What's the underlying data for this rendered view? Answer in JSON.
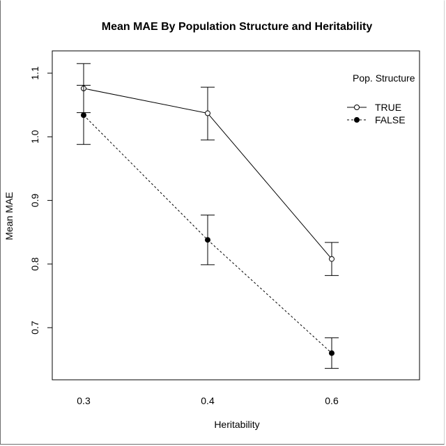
{
  "chart_data": {
    "type": "line",
    "title": "Mean MAE By Population Structure and Heritability",
    "xlabel": "Heritability",
    "ylabel": "Mean MAE",
    "categories": [
      "0.3",
      "0.4",
      "0.6"
    ],
    "yticks": [
      "0.7",
      "0.8",
      "0.9",
      "1.0",
      "1.1"
    ],
    "ylim": [
      0.625,
      1.145
    ],
    "legend_title": "Pop. Structure",
    "legend_position": "top-right",
    "series": [
      {
        "name": "TRUE",
        "marker": "open-circle",
        "line": "solid",
        "values": [
          1.076,
          1.037,
          0.808
        ],
        "error_low": [
          1.038,
          0.995,
          0.782
        ],
        "error_high": [
          1.115,
          1.078,
          0.834
        ]
      },
      {
        "name": "FALSE",
        "marker": "filled-circle",
        "line": "dashed",
        "values": [
          1.034,
          0.838,
          0.66
        ],
        "error_low": [
          0.988,
          0.799,
          0.636
        ],
        "error_high": [
          1.081,
          0.877,
          0.684
        ]
      }
    ]
  }
}
